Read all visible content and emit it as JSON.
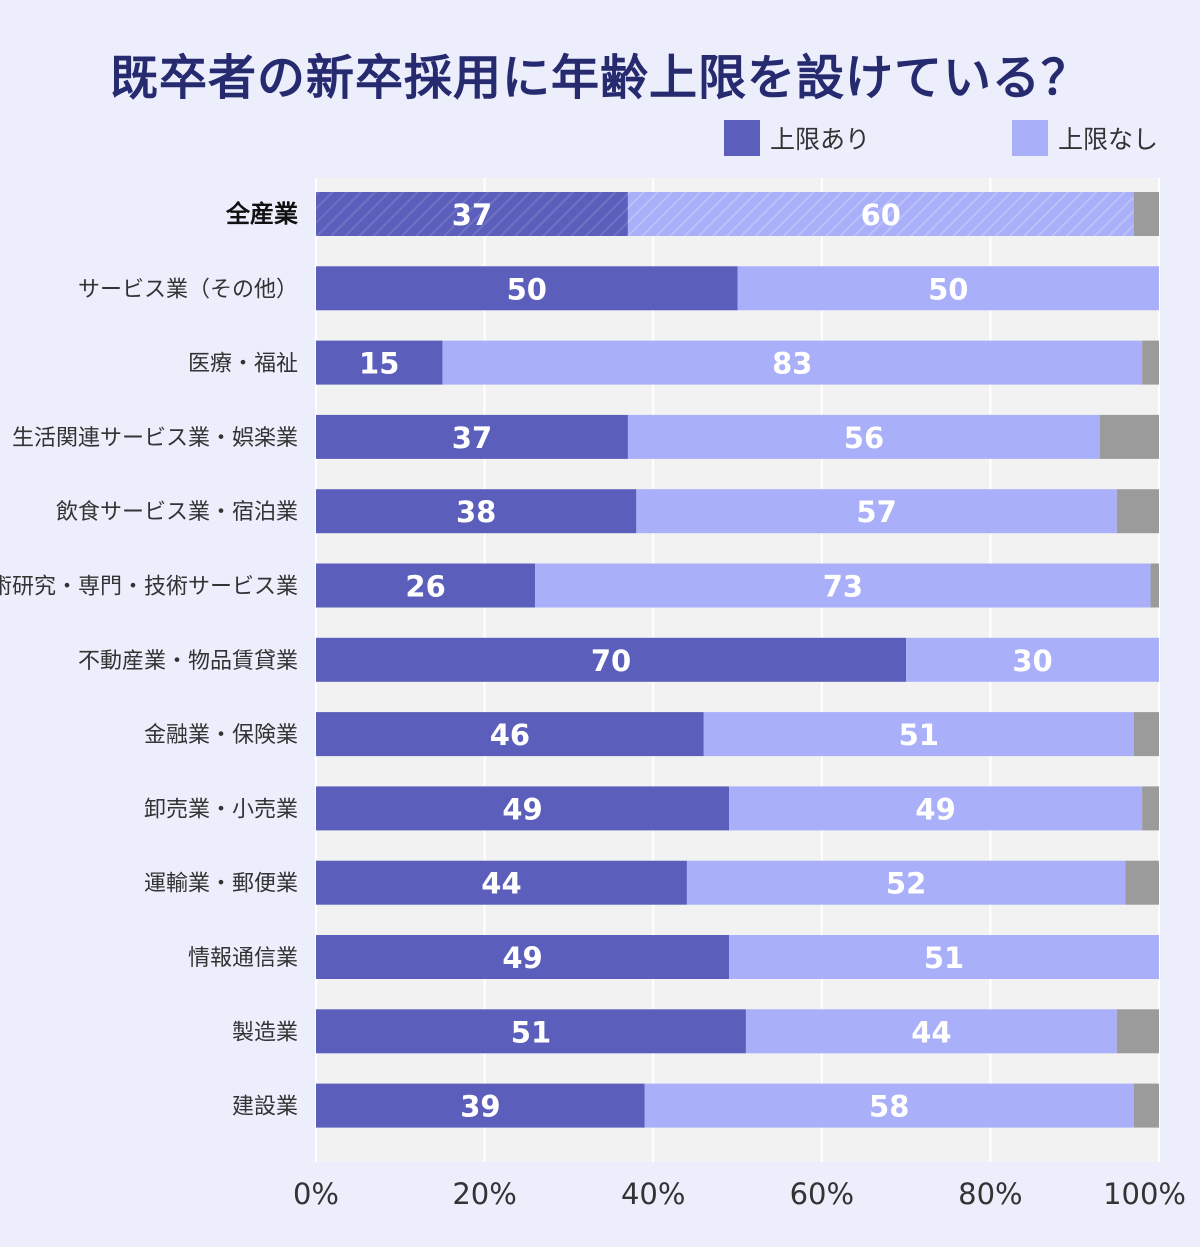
{
  "chart_data": {
    "type": "bar",
    "orientation": "horizontal",
    "stacked": true,
    "title": "既卒者の新卒採用に年齢上限を設けている？",
    "categories": [
      "全産業",
      "サービス業（その他）",
      "医療・福祉",
      "生活関連サービス業・娯楽業",
      "飲食サービス業・宿泊業",
      "学術研究・専門・技術サービス業",
      "不動産業・物品賃貸業",
      "金融業・保険業",
      "卸売業・小売業",
      "運輸業・郵便業",
      "情報通信業",
      "製造業",
      "建設業"
    ],
    "highlight_category": "全産業",
    "series": [
      {
        "name": "上限あり",
        "color": "#5b5fbb",
        "values": [
          37,
          50,
          15,
          37,
          38,
          26,
          70,
          46,
          49,
          44,
          49,
          51,
          39
        ]
      },
      {
        "name": "上限なし",
        "color": "#a9aff9",
        "values": [
          60,
          50,
          83,
          56,
          57,
          73,
          30,
          51,
          49,
          52,
          51,
          44,
          58
        ]
      },
      {
        "color": "#9b9b9b",
        "values": [
          3,
          0,
          2,
          7,
          5,
          1,
          0,
          3,
          2,
          4,
          0,
          5,
          3
        ]
      }
    ],
    "xlim": [
      0,
      100
    ],
    "x_ticks": [
      "0%",
      "20%",
      "40%",
      "60%",
      "80%",
      "100%"
    ],
    "grid": true,
    "legend_position": "top-right"
  }
}
